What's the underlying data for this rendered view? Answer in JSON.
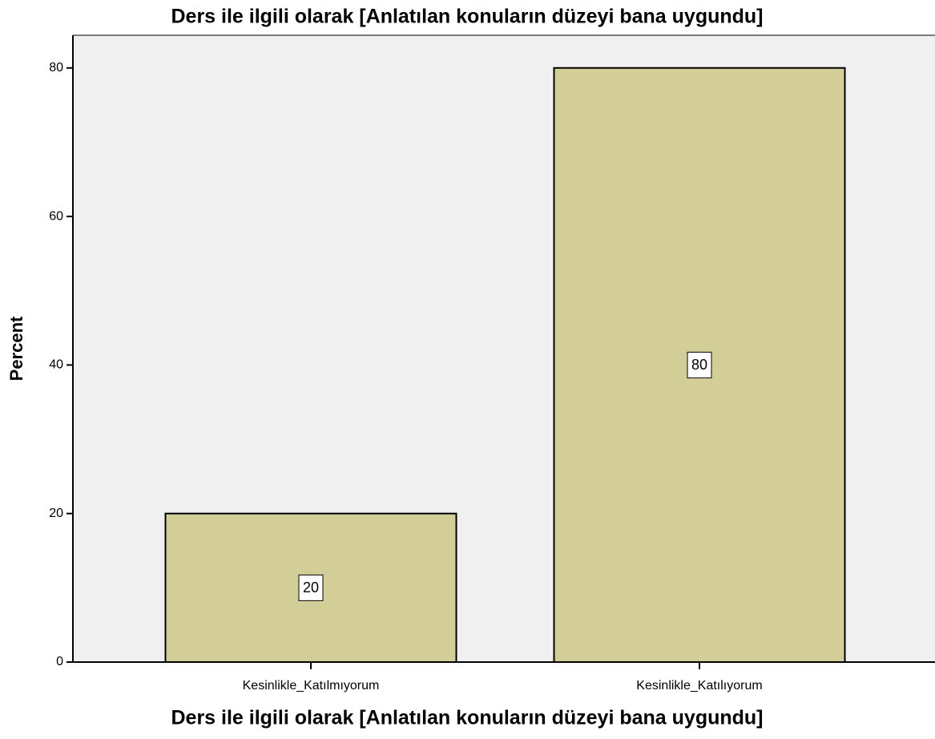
{
  "chart_data": {
    "type": "bar",
    "title": "Ders ile ilgili olarak [Anlatılan konuların düzeyi bana uygundu]",
    "x_label": "Ders ile ilgili olarak [Anlatılan konuların düzeyi bana uygundu]",
    "y_label": "Percent",
    "categories": [
      "Kesinlikle_Katılmıyorum",
      "Kesinlikle_Katılıyorum"
    ],
    "values": [
      20,
      80
    ],
    "color": "#d3ce97",
    "ylim": [
      0,
      84.4
    ],
    "yticks": [
      0,
      20,
      40,
      60,
      80
    ],
    "grid": false
  }
}
